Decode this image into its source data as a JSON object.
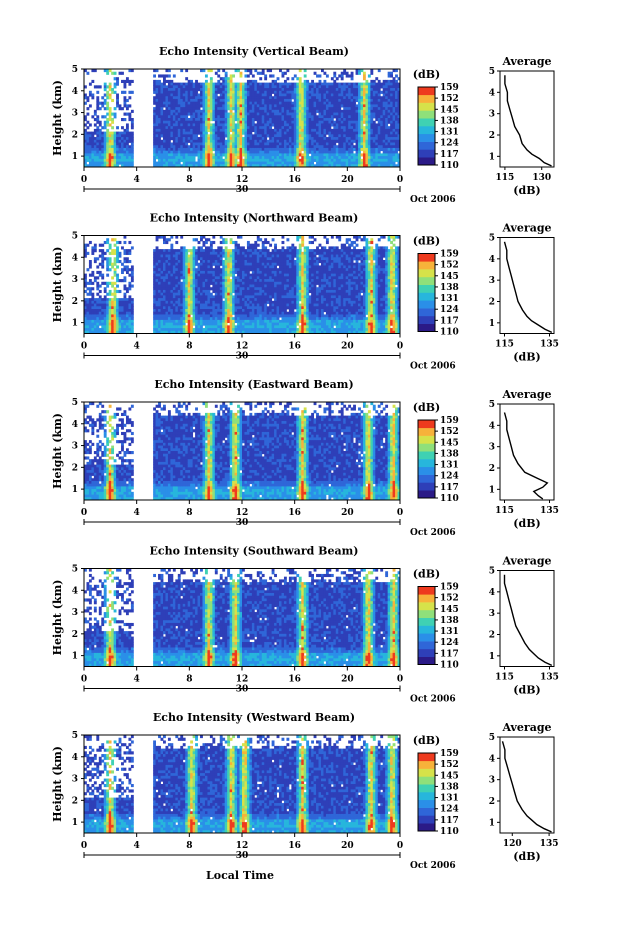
{
  "colors": {
    "colormap": [
      "#2b1a87",
      "#2e3fb8",
      "#2f66d8",
      "#2a8fe8",
      "#27b6dc",
      "#3fd1b3",
      "#8fe07a",
      "#d6e24a",
      "#f7b23a",
      "#ee3a1e"
    ],
    "background": "#ffffff",
    "line": "#000000"
  },
  "date_label": "Oct 2006",
  "day_label": "30",
  "xlabel": "Local Time",
  "ylabel": "Height (km)",
  "avg_title": "Average",
  "avg_xlabel": "(dB)",
  "colorbar_unit": "(dB)",
  "colorbar_ticks": [
    "110",
    "117",
    "124",
    "131",
    "138",
    "145",
    "152",
    "159"
  ],
  "x_ticks": [
    "0",
    "4",
    "8",
    "12",
    "16",
    "20",
    "0"
  ],
  "y_ticks": [
    "1",
    "2",
    "3",
    "4",
    "5"
  ],
  "chart_data": [
    {
      "type": "heatmap",
      "title": "Echo Intensity (Vertical Beam)",
      "x_range_hours": [
        0,
        24
      ],
      "y_range_km": [
        0.5,
        5
      ],
      "gap_hours": [
        [
          3.8,
          5.3
        ]
      ],
      "strong_echo_hours": [
        2.0,
        9.5,
        11.2,
        11.9,
        16.5,
        21.3
      ],
      "colorbar_range_db": [
        110,
        159
      ],
      "average": {
        "xticks": [
          "115",
          "130"
        ],
        "xlim": [
          113,
          135
        ],
        "height_km": [
          0.55,
          0.7,
          0.9,
          1.1,
          1.3,
          1.6,
          2.0,
          2.4,
          2.8,
          3.2,
          3.6,
          4.0,
          4.4,
          4.8
        ],
        "value_db": [
          134,
          131,
          129,
          126,
          124,
          122,
          121,
          119,
          118,
          117,
          116,
          116,
          115,
          115
        ]
      }
    },
    {
      "type": "heatmap",
      "title": "Echo Intensity (Northward Beam)",
      "x_range_hours": [
        0,
        24
      ],
      "y_range_km": [
        0.5,
        5
      ],
      "gap_hours": [
        [
          3.8,
          5.3
        ]
      ],
      "strong_echo_hours": [
        2.2,
        8.0,
        11.0,
        16.6,
        21.8,
        23.4
      ],
      "colorbar_range_db": [
        110,
        159
      ],
      "average": {
        "xticks": [
          "115",
          "135"
        ],
        "xlim": [
          113,
          137
        ],
        "height_km": [
          0.55,
          0.7,
          0.9,
          1.1,
          1.3,
          1.6,
          2.0,
          2.4,
          2.8,
          3.2,
          3.6,
          4.0,
          4.4,
          4.8
        ],
        "value_db": [
          136,
          133,
          130,
          127,
          125,
          123,
          121,
          120,
          119,
          118,
          117,
          116,
          116,
          115
        ]
      }
    },
    {
      "type": "heatmap",
      "title": "Echo Intensity (Eastward Beam)",
      "x_range_hours": [
        0,
        24
      ],
      "y_range_km": [
        0.5,
        5
      ],
      "gap_hours": [
        [
          3.8,
          5.3
        ]
      ],
      "strong_echo_hours": [
        2.0,
        9.5,
        11.5,
        16.6,
        21.6,
        23.5
      ],
      "colorbar_range_db": [
        110,
        159
      ],
      "average": {
        "xticks": [
          "115",
          "135"
        ],
        "xlim": [
          113,
          137
        ],
        "height_km": [
          0.55,
          0.7,
          0.9,
          1.1,
          1.3,
          1.5,
          1.8,
          2.2,
          2.6,
          3.0,
          3.4,
          3.8,
          4.2,
          4.6
        ],
        "value_db": [
          132,
          130,
          128,
          132,
          134,
          130,
          124,
          121,
          119,
          118,
          117,
          116,
          116,
          115
        ]
      }
    },
    {
      "type": "heatmap",
      "title": "Echo Intensity (Southward Beam)",
      "x_range_hours": [
        0,
        24
      ],
      "y_range_km": [
        0.5,
        5
      ],
      "gap_hours": [
        [
          3.8,
          5.3
        ]
      ],
      "strong_echo_hours": [
        2.0,
        9.5,
        11.5,
        16.6,
        21.6,
        23.5
      ],
      "colorbar_range_db": [
        110,
        159
      ],
      "average": {
        "xticks": [
          "115",
          "135"
        ],
        "xlim": [
          113,
          137
        ],
        "height_km": [
          0.55,
          0.7,
          0.9,
          1.1,
          1.3,
          1.6,
          2.0,
          2.4,
          2.8,
          3.2,
          3.6,
          4.0,
          4.4,
          4.8
        ],
        "value_db": [
          136,
          133,
          130,
          128,
          126,
          124,
          122,
          120,
          119,
          118,
          117,
          116,
          115,
          115
        ]
      }
    },
    {
      "type": "heatmap",
      "title": "Echo Intensity (Westward Beam)",
      "x_range_hours": [
        0,
        24
      ],
      "y_range_km": [
        0.5,
        5
      ],
      "gap_hours": [
        [
          3.8,
          5.3
        ]
      ],
      "strong_echo_hours": [
        2.0,
        8.2,
        11.2,
        12.2,
        16.6,
        21.8,
        23.4
      ],
      "colorbar_range_db": [
        110,
        159
      ],
      "average": {
        "xticks": [
          "120",
          "135"
        ],
        "xlim": [
          115,
          137
        ],
        "height_km": [
          0.55,
          0.7,
          0.9,
          1.1,
          1.3,
          1.6,
          2.0,
          2.4,
          2.8,
          3.2,
          3.6,
          4.0,
          4.4,
          4.8
        ],
        "value_db": [
          136,
          133,
          130,
          128,
          126,
          124,
          122,
          121,
          120,
          119,
          118,
          117,
          117,
          116
        ]
      }
    }
  ]
}
